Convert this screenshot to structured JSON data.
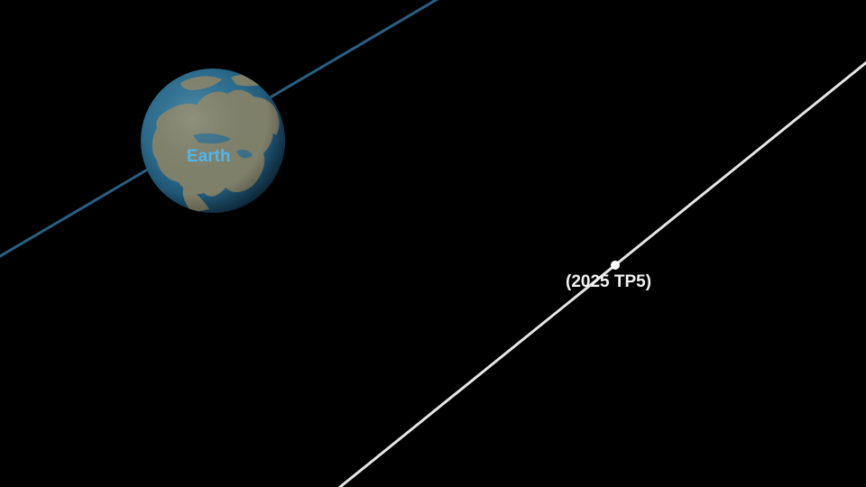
{
  "scene": {
    "earth": {
      "label": "Earth",
      "label_color": "#4fb6f0",
      "orbit_color": "#2a5f82"
    },
    "asteroid": {
      "label": "(2025 TP5)",
      "label_color": "#f2f2f2",
      "path_color": "#e6e6e6"
    },
    "background_color": "#000000"
  }
}
